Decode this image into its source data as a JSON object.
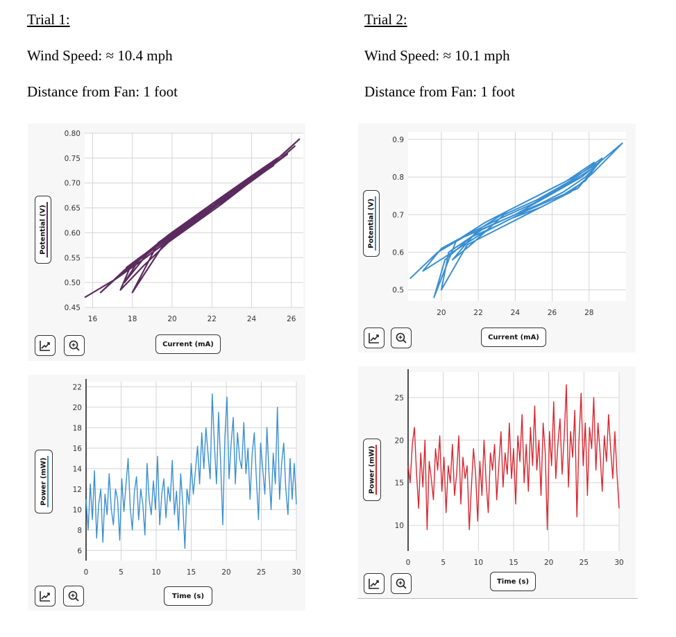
{
  "trial1": {
    "title": "Trial 1:",
    "wind": "Wind Speed: ≈ 10.4 mph",
    "distance": "Distance from Fan: 1 foot"
  },
  "trial2": {
    "title": "Trial 2:",
    "wind": "Wind Speed: ≈ 10.1 mph",
    "distance": "Distance from Fan: 1 foot"
  },
  "colors": {
    "purple": "#5b2a5e",
    "blue": "#3a8fd0",
    "red": "#d8262f",
    "grid": "#d4d4d4"
  },
  "icons": [
    "graph-tools-icon",
    "zoom-icon"
  ],
  "chart_data": [
    {
      "id": "t1-vi",
      "type": "line",
      "xlabel": "Current (mA)",
      "ylabel": "Potential (V)",
      "xlim": [
        15.6,
        26.6
      ],
      "ylim": [
        0.45,
        0.8
      ],
      "xticks": [
        "16",
        "18",
        "20",
        "22",
        "24",
        "26"
      ],
      "yticks": [
        "0.45",
        "0.50",
        "0.55",
        "0.60",
        "0.65",
        "0.70",
        "0.75",
        "0.80"
      ],
      "series": [
        {
          "x": [
            15.6,
            17.2,
            18.5,
            19.6,
            20.8,
            21.9,
            22.8,
            23.8,
            24.6,
            25.5,
            26.4,
            25.4,
            24.1,
            22.8,
            21.5,
            20.1,
            18.9,
            17.9,
            17.4,
            18.6,
            20.0,
            21.4,
            22.7,
            24.0,
            25.1,
            24.2,
            22.9,
            21.3,
            19.8,
            18.5,
            17.5,
            16.4,
            17.6,
            19.0,
            20.4,
            21.8,
            23.1,
            24.4,
            25.6,
            24.8,
            23.3,
            21.8,
            20.2,
            18.8,
            17.6,
            18.4,
            19.8,
            21.2,
            22.5,
            23.6,
            24.5,
            25.3,
            24.0,
            22.6,
            21.1,
            19.6,
            18.3,
            17.7,
            19.1,
            20.6,
            22.0,
            23.4,
            24.7,
            25.8,
            24.9,
            23.4,
            22.1,
            20.7,
            19.3,
            18.0,
            19.5,
            21.0,
            22.4,
            23.7,
            25.0,
            26.2
          ],
          "y": [
            0.47,
            0.508,
            0.545,
            0.578,
            0.612,
            0.645,
            0.672,
            0.703,
            0.728,
            0.755,
            0.788,
            0.752,
            0.715,
            0.676,
            0.638,
            0.598,
            0.562,
            0.532,
            0.485,
            0.535,
            0.588,
            0.63,
            0.668,
            0.705,
            0.735,
            0.712,
            0.672,
            0.63,
            0.585,
            0.545,
            0.52,
            0.48,
            0.525,
            0.565,
            0.606,
            0.646,
            0.683,
            0.72,
            0.752,
            0.728,
            0.688,
            0.645,
            0.6,
            0.56,
            0.5,
            0.55,
            0.595,
            0.635,
            0.672,
            0.703,
            0.728,
            0.75,
            0.71,
            0.67,
            0.628,
            0.585,
            0.548,
            0.53,
            0.57,
            0.61,
            0.65,
            0.69,
            0.725,
            0.758,
            0.735,
            0.695,
            0.66,
            0.62,
            0.58,
            0.48,
            0.572,
            0.615,
            0.655,
            0.695,
            0.733,
            0.775
          ]
        }
      ]
    },
    {
      "id": "t2-vi",
      "type": "line",
      "xlabel": "Current (mA)",
      "ylabel": "Potential (V)",
      "xlim": [
        18.2,
        30.0
      ],
      "ylim": [
        0.47,
        0.92
      ],
      "xticks": [
        "20",
        "22",
        "24",
        "26",
        "28"
      ],
      "yticks": [
        "0.5",
        "0.6",
        "0.7",
        "0.8",
        "0.9"
      ],
      "series": [
        {
          "x": [
            18.3,
            19.8,
            21.2,
            22.6,
            24.0,
            25.4,
            26.6,
            27.8,
            28.6,
            27.2,
            25.6,
            24.0,
            22.4,
            20.8,
            19.6,
            20.2,
            21.6,
            23.0,
            24.6,
            26.0,
            27.4,
            28.4,
            26.8,
            25.0,
            23.2,
            21.5,
            20.0,
            19.0,
            20.6,
            22.2,
            23.8,
            25.4,
            27.0,
            28.2,
            29.8,
            27.6,
            25.8,
            24.0,
            22.2,
            20.4,
            20.0,
            21.4,
            23.0,
            24.6,
            26.2,
            27.8,
            28.7,
            27.0,
            25.2,
            23.4,
            21.6,
            20.6,
            22.0,
            23.6,
            25.2,
            26.8,
            28.3
          ],
          "y": [
            0.53,
            0.6,
            0.64,
            0.67,
            0.7,
            0.73,
            0.76,
            0.8,
            0.84,
            0.8,
            0.76,
            0.72,
            0.68,
            0.63,
            0.48,
            0.58,
            0.64,
            0.67,
            0.71,
            0.74,
            0.77,
            0.83,
            0.78,
            0.73,
            0.69,
            0.65,
            0.61,
            0.55,
            0.6,
            0.65,
            0.69,
            0.72,
            0.76,
            0.81,
            0.89,
            0.8,
            0.75,
            0.7,
            0.66,
            0.6,
            0.5,
            0.62,
            0.66,
            0.7,
            0.74,
            0.79,
            0.85,
            0.79,
            0.74,
            0.7,
            0.62,
            0.58,
            0.66,
            0.71,
            0.75,
            0.79,
            0.84
          ]
        }
      ]
    },
    {
      "id": "t1-power",
      "type": "line",
      "xlabel": "Time (s)",
      "ylabel": "Power (mW)",
      "xlim": [
        0,
        30
      ],
      "ylim": [
        5,
        22.5
      ],
      "xticks": [
        "0",
        "5",
        "10",
        "15",
        "20",
        "25",
        "30"
      ],
      "yticks": [
        "6",
        "8",
        "10",
        "12",
        "14",
        "16",
        "18",
        "20",
        "22"
      ],
      "series": [
        {
          "x": [
            0,
            0.3,
            0.6,
            0.9,
            1.2,
            1.5,
            1.8,
            2.1,
            2.4,
            2.7,
            3.0,
            3.3,
            3.6,
            3.9,
            4.2,
            4.5,
            4.8,
            5.1,
            5.4,
            5.7,
            6.0,
            6.3,
            6.6,
            6.9,
            7.2,
            7.5,
            7.8,
            8.1,
            8.4,
            8.7,
            9.0,
            9.3,
            9.6,
            9.9,
            10.2,
            10.5,
            10.8,
            11.1,
            11.4,
            11.7,
            12.0,
            12.3,
            12.6,
            12.9,
            13.2,
            13.5,
            13.8,
            14.1,
            14.4,
            14.7,
            15.0,
            15.3,
            15.6,
            15.9,
            16.2,
            16.5,
            16.8,
            17.1,
            17.4,
            17.7,
            18.0,
            18.3,
            18.6,
            18.9,
            19.2,
            19.5,
            19.8,
            20.1,
            20.4,
            20.7,
            21.0,
            21.3,
            21.6,
            21.9,
            22.2,
            22.5,
            22.8,
            23.1,
            23.4,
            23.7,
            24.0,
            24.3,
            24.6,
            24.9,
            25.2,
            25.5,
            25.8,
            26.1,
            26.4,
            26.7,
            27.0,
            27.3,
            27.6,
            27.9,
            28.2,
            28.5,
            28.8,
            29.1,
            29.4,
            29.7,
            30.0
          ],
          "y": [
            11.0,
            8.0,
            12.5,
            9.0,
            13.8,
            7.2,
            10.5,
            12.0,
            6.8,
            11.5,
            9.5,
            13.5,
            10.0,
            8.5,
            12.0,
            11.0,
            7.0,
            13.0,
            9.8,
            12.5,
            15.0,
            10.2,
            8.0,
            11.8,
            13.2,
            9.0,
            12.0,
            10.5,
            7.5,
            14.5,
            11.0,
            9.5,
            12.8,
            10.0,
            15.2,
            8.5,
            11.5,
            13.0,
            9.2,
            12.2,
            10.8,
            14.8,
            9.5,
            11.8,
            8.0,
            13.5,
            10.5,
            6.2,
            12.0,
            10.5,
            14.5,
            11.5,
            13.8,
            16.2,
            12.5,
            17.5,
            14.0,
            18.0,
            15.5,
            13.0,
            21.3,
            16.5,
            12.5,
            19.5,
            14.5,
            8.5,
            17.0,
            21.0,
            13.0,
            16.5,
            19.0,
            12.5,
            17.5,
            15.0,
            14.0,
            18.5,
            13.5,
            16.0,
            11.0,
            15.5,
            17.5,
            13.0,
            9.0,
            16.5,
            14.0,
            11.5,
            18.0,
            13.5,
            10.0,
            15.5,
            12.5,
            20.0,
            11.0,
            14.5,
            16.5,
            12.0,
            9.5,
            15.0,
            11.0,
            14.5,
            10.5
          ]
        }
      ]
    },
    {
      "id": "t2-power",
      "type": "line",
      "xlabel": "Time (s)",
      "ylabel": "Power (mW)",
      "xlim": [
        0,
        30
      ],
      "ylim": [
        7,
        28
      ],
      "xticks": [
        "0",
        "5",
        "10",
        "15",
        "20",
        "25",
        "30"
      ],
      "yticks": [
        "10",
        "15",
        "20",
        "25"
      ],
      "series": [
        {
          "x": [
            0,
            0.3,
            0.6,
            0.9,
            1.2,
            1.5,
            1.8,
            2.1,
            2.4,
            2.7,
            3.0,
            3.3,
            3.6,
            3.9,
            4.2,
            4.5,
            4.8,
            5.1,
            5.4,
            5.7,
            6.0,
            6.3,
            6.6,
            6.9,
            7.2,
            7.5,
            7.8,
            8.1,
            8.4,
            8.7,
            9.0,
            9.3,
            9.6,
            9.9,
            10.2,
            10.5,
            10.8,
            11.1,
            11.4,
            11.7,
            12.0,
            12.3,
            12.6,
            12.9,
            13.2,
            13.5,
            13.8,
            14.1,
            14.4,
            14.7,
            15.0,
            15.3,
            15.6,
            15.9,
            16.2,
            16.5,
            16.8,
            17.1,
            17.4,
            17.7,
            18.0,
            18.3,
            18.6,
            18.9,
            19.2,
            19.5,
            19.8,
            20.1,
            20.4,
            20.7,
            21.0,
            21.3,
            21.6,
            21.9,
            22.2,
            22.5,
            22.8,
            23.1,
            23.4,
            23.7,
            24.0,
            24.3,
            24.6,
            24.9,
            25.2,
            25.5,
            25.8,
            26.1,
            26.4,
            26.7,
            27.0,
            27.3,
            27.6,
            27.9,
            28.2,
            28.5,
            28.8,
            29.1,
            29.4,
            29.7,
            30.0
          ],
          "y": [
            17.0,
            15.0,
            19.5,
            21.5,
            16.0,
            12.0,
            18.5,
            14.5,
            20.0,
            9.5,
            17.5,
            15.5,
            13.0,
            19.0,
            16.5,
            20.5,
            14.0,
            18.0,
            11.5,
            17.0,
            15.0,
            19.5,
            13.5,
            16.0,
            20.5,
            12.5,
            18.0,
            15.5,
            17.0,
            9.5,
            14.5,
            19.0,
            16.0,
            10.5,
            17.5,
            13.5,
            20.0,
            15.0,
            11.5,
            18.5,
            16.5,
            19.5,
            13.0,
            17.0,
            21.0,
            14.5,
            18.5,
            16.0,
            22.0,
            15.5,
            19.0,
            12.5,
            20.5,
            17.5,
            23.0,
            15.0,
            19.5,
            14.0,
            21.5,
            17.0,
            24.0,
            16.5,
            20.0,
            13.5,
            22.0,
            18.5,
            9.5,
            21.0,
            17.0,
            24.5,
            15.5,
            19.5,
            22.5,
            16.0,
            20.5,
            26.5,
            14.5,
            21.0,
            18.0,
            23.5,
            11.0,
            20.0,
            25.5,
            17.0,
            22.0,
            13.5,
            21.5,
            19.0,
            25.0,
            16.5,
            22.0,
            18.5,
            14.0,
            20.5,
            17.5,
            23.0,
            19.0,
            15.5,
            21.0,
            16.0,
            12.0
          ]
        }
      ]
    }
  ]
}
